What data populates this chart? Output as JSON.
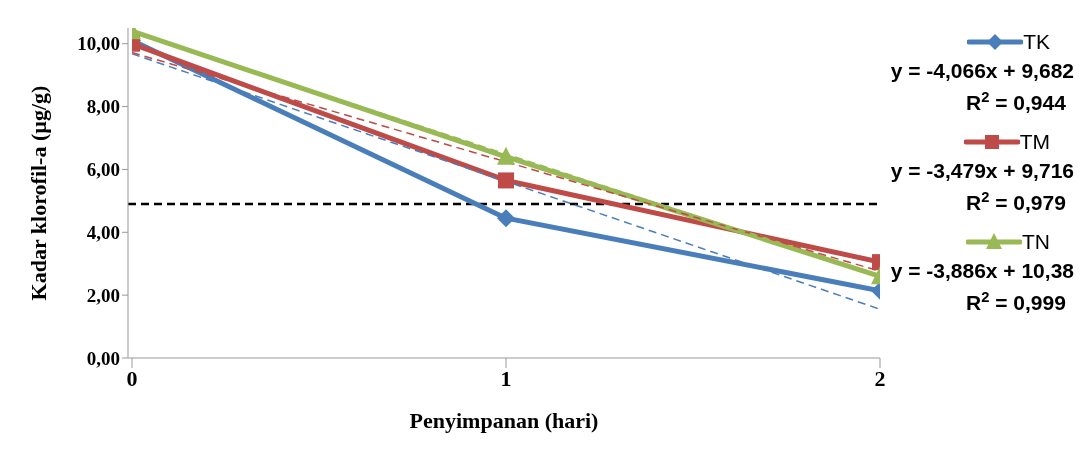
{
  "chart_data": {
    "type": "line",
    "xlabel": "Penyimpanan (hari)",
    "ylabel": "Kadar klorofil-a (µg/g)",
    "x": [
      0,
      1,
      2
    ],
    "xlim": [
      0,
      2
    ],
    "xticks": [
      0,
      1,
      2
    ],
    "ylim": [
      0,
      10.5
    ],
    "yticks": [
      {
        "value": 0,
        "label": "0,00"
      },
      {
        "value": 2,
        "label": "2,00"
      },
      {
        "value": 4,
        "label": "4,00"
      },
      {
        "value": 6,
        "label": "6,00"
      },
      {
        "value": 8,
        "label": "8,00"
      },
      {
        "value": 10,
        "label": "10,00"
      }
    ],
    "legend": "right",
    "series": [
      {
        "name": "TK",
        "color": "#4a7ebb",
        "marker": "diamond",
        "values": [
          10.1,
          4.45,
          2.14
        ]
      },
      {
        "name": "TM",
        "color": "#be4b48",
        "marker": "square",
        "values": [
          10.0,
          5.65,
          3.05
        ]
      },
      {
        "name": "TN",
        "color": "#98b954",
        "marker": "triangle",
        "values": [
          10.4,
          6.4,
          2.6
        ]
      },
      {
        "type": "line",
        "color": "#4a7ebb",
        "line_style": "dashed",
        "values": [
          9.68,
          5.62,
          1.55
        ]
      },
      {
        "type": "line",
        "color": "#be4b48",
        "line_style": "dashed",
        "values": [
          9.72,
          null,
          2.76
        ]
      },
      {
        "type": "line",
        "color": "#98b954",
        "line_style": "dashed",
        "values": [
          10.38,
          6.49,
          2.61
        ]
      }
    ],
    "ref_lines": [
      {
        "axis": "y",
        "value": 4.9,
        "color": "#000000",
        "line_style": "dashed"
      }
    ],
    "annotations": [
      "y = -4,066x + 9,682",
      "R$^{2}$ = 0,944",
      "y = -3,479x + 9,716",
      "R$^{2}$ = 0,979",
      "y = -3,886x + 10,38",
      "R$^{2}$ = 0,999"
    ]
  }
}
